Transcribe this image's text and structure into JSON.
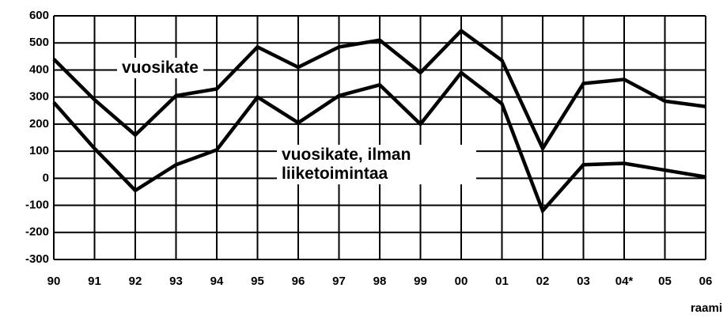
{
  "chart_data": {
    "type": "line",
    "annotation": "raami",
    "categories": [
      "90",
      "91",
      "92",
      "93",
      "94",
      "95",
      "96",
      "97",
      "98",
      "99",
      "00",
      "01",
      "02",
      "03",
      "04*",
      "05",
      "06"
    ],
    "series": [
      {
        "name": "vuosikate",
        "color": "#000000",
        "values": [
          440,
          290,
          160,
          305,
          330,
          485,
          410,
          485,
          510,
          390,
          545,
          435,
          110,
          350,
          365,
          285,
          265
        ]
      },
      {
        "name": "vuosikate, ilman liiketoimintaa",
        "color": "#000000",
        "values": [
          280,
          110,
          -45,
          50,
          105,
          300,
          205,
          305,
          345,
          200,
          390,
          275,
          -120,
          50,
          55,
          30,
          5
        ]
      }
    ],
    "ylim": [
      -300,
      600
    ],
    "yticks": [
      -300,
      -200,
      -100,
      0,
      100,
      200,
      300,
      400,
      500,
      600
    ],
    "grid": true
  }
}
